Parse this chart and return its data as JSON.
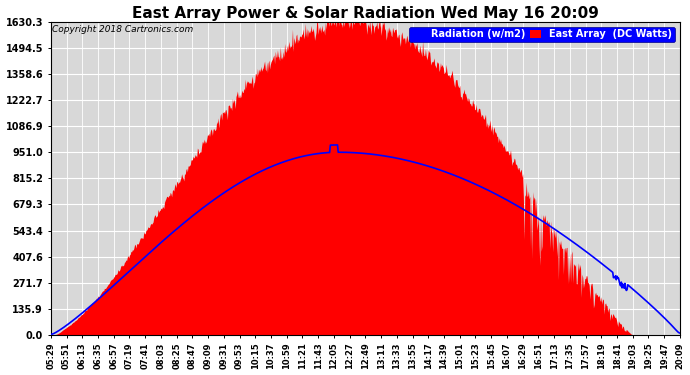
{
  "title": "East Array Power & Solar Radiation Wed May 16 20:09",
  "copyright": "Copyright 2018 Cartronics.com",
  "legend_labels": [
    "Radiation (w/m2)",
    "East Array  (DC Watts)"
  ],
  "legend_colors": [
    "blue",
    "red"
  ],
  "yticks": [
    0.0,
    135.9,
    271.7,
    407.6,
    543.4,
    679.3,
    815.2,
    951.0,
    1086.9,
    1222.7,
    1358.6,
    1494.5,
    1630.3
  ],
  "ymax": 1630.3,
  "ymin": 0.0,
  "bg_color": "#d8d8d8",
  "grid_color": "white",
  "bar_color": "red",
  "line_color": "blue",
  "title_fontsize": 11,
  "start_time": "05:29",
  "end_time": "20:09",
  "tick_interval_min": 22,
  "spike_time": "12:05",
  "peak_time": "12:27",
  "rad_peak_time": "12:11",
  "rad_max": 951.0,
  "dc_max": 1630.3,
  "sunset_time": "19:03",
  "n_points": 880
}
